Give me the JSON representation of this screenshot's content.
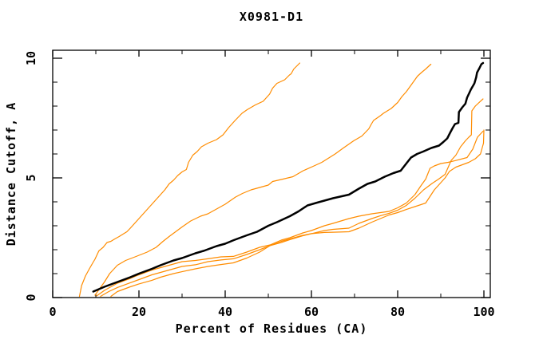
{
  "chart_data": {
    "type": "line",
    "title": "X0981-D1",
    "xlabel": "Percent of Residues (CA)",
    "ylabel": "Distance Cutoff, A",
    "xlim": [
      0,
      100
    ],
    "ylim": [
      0,
      10
    ],
    "grid": false,
    "legend": "none",
    "x_major_ticks": [
      0,
      20,
      40,
      60,
      80,
      100
    ],
    "x_minor_ticks": [
      10,
      30,
      50,
      70,
      90
    ],
    "y_major_ticks": [
      0,
      5,
      10
    ],
    "y_minor_ticks": [
      1,
      2,
      3,
      4,
      6,
      7,
      8,
      9
    ],
    "colors": {
      "frame": "#000000",
      "highlight_curve": "#000000",
      "other_curves": "#ff8c00",
      "background": "#ffffff"
    },
    "series": [
      {
        "name": "orange-curve-1-steepest",
        "color": "#ff8c00",
        "width": 1.2,
        "points": [
          [
            6.2,
            0.05
          ],
          [
            6.7,
            0.5
          ],
          [
            7.6,
            0.9
          ],
          [
            8.5,
            1.2
          ],
          [
            9.3,
            1.45
          ],
          [
            9.8,
            1.6
          ],
          [
            10.7,
            1.95
          ],
          [
            11.7,
            2.1
          ],
          [
            12.6,
            2.3
          ],
          [
            13.5,
            2.35
          ],
          [
            14.4,
            2.45
          ],
          [
            15.4,
            2.55
          ],
          [
            16.3,
            2.65
          ],
          [
            17.2,
            2.75
          ],
          [
            18,
            2.9
          ],
          [
            19,
            3.1
          ],
          [
            20,
            3.3
          ],
          [
            21,
            3.5
          ],
          [
            22,
            3.7
          ],
          [
            23,
            3.9
          ],
          [
            24,
            4.1
          ],
          [
            25,
            4.3
          ],
          [
            26,
            4.5
          ],
          [
            27,
            4.75
          ],
          [
            28,
            4.9
          ],
          [
            29,
            5.1
          ],
          [
            30,
            5.25
          ],
          [
            31,
            5.35
          ],
          [
            31.5,
            5.65
          ],
          [
            32.5,
            5.95
          ],
          [
            33.5,
            6.1
          ],
          [
            34.5,
            6.3
          ],
          [
            36,
            6.45
          ],
          [
            38,
            6.6
          ],
          [
            39.5,
            6.8
          ],
          [
            40.8,
            7.1
          ],
          [
            42.3,
            7.4
          ],
          [
            43.9,
            7.7
          ],
          [
            45.1,
            7.85
          ],
          [
            47,
            8.05
          ],
          [
            48.8,
            8.2
          ],
          [
            50.3,
            8.5
          ],
          [
            51,
            8.75
          ],
          [
            52,
            8.95
          ],
          [
            53.8,
            9.1
          ],
          [
            54.9,
            9.3
          ],
          [
            55.3,
            9.35
          ],
          [
            55.9,
            9.55
          ],
          [
            57.3,
            9.8
          ]
        ]
      },
      {
        "name": "orange-curve-2",
        "color": "#ff8c00",
        "width": 1.2,
        "points": [
          [
            9.8,
            0.1
          ],
          [
            10.4,
            0.25
          ],
          [
            12,
            0.65
          ],
          [
            13.2,
            1.0
          ],
          [
            15,
            1.35
          ],
          [
            16.9,
            1.55
          ],
          [
            19.1,
            1.7
          ],
          [
            21.9,
            1.9
          ],
          [
            24,
            2.1
          ],
          [
            25.6,
            2.35
          ],
          [
            27,
            2.55
          ],
          [
            28.5,
            2.75
          ],
          [
            30,
            2.95
          ],
          [
            32,
            3.2
          ],
          [
            34.3,
            3.4
          ],
          [
            36,
            3.5
          ],
          [
            38,
            3.7
          ],
          [
            40,
            3.9
          ],
          [
            42.4,
            4.2
          ],
          [
            44,
            4.35
          ],
          [
            46,
            4.5
          ],
          [
            48,
            4.6
          ],
          [
            50,
            4.7
          ],
          [
            51,
            4.85
          ],
          [
            53.4,
            4.95
          ],
          [
            55.7,
            5.05
          ],
          [
            58.1,
            5.3
          ],
          [
            60.6,
            5.5
          ],
          [
            62.4,
            5.65
          ],
          [
            65.5,
            6.0
          ],
          [
            67.4,
            6.25
          ],
          [
            69.8,
            6.55
          ],
          [
            71.7,
            6.75
          ],
          [
            73.3,
            7.05
          ],
          [
            73.9,
            7.25
          ],
          [
            74.4,
            7.4
          ],
          [
            76,
            7.6
          ],
          [
            76.7,
            7.7
          ],
          [
            78.5,
            7.9
          ],
          [
            80,
            8.15
          ],
          [
            81,
            8.4
          ],
          [
            82,
            8.6
          ],
          [
            83,
            8.85
          ],
          [
            84.6,
            9.25
          ],
          [
            85.5,
            9.4
          ],
          [
            86.5,
            9.55
          ],
          [
            87.7,
            9.75
          ]
        ]
      },
      {
        "name": "orange-curve-3-bundle-upper",
        "color": "#ff8c00",
        "width": 1.2,
        "points": [
          [
            10.2,
            0.07
          ],
          [
            12,
            0.3
          ],
          [
            15,
            0.6
          ],
          [
            18,
            0.8
          ],
          [
            20,
            0.95
          ],
          [
            23,
            1.15
          ],
          [
            25,
            1.25
          ],
          [
            28,
            1.4
          ],
          [
            30,
            1.5
          ],
          [
            33.1,
            1.55
          ],
          [
            36,
            1.62
          ],
          [
            39,
            1.7
          ],
          [
            41.9,
            1.72
          ],
          [
            45,
            1.9
          ],
          [
            48,
            2.1
          ],
          [
            50.4,
            2.2
          ],
          [
            53,
            2.4
          ],
          [
            55,
            2.5
          ],
          [
            58,
            2.7
          ],
          [
            60,
            2.8
          ],
          [
            63,
            3.0
          ],
          [
            65,
            3.1
          ],
          [
            68.7,
            3.3
          ],
          [
            71,
            3.4
          ],
          [
            74,
            3.5
          ],
          [
            78,
            3.6
          ],
          [
            80,
            3.75
          ],
          [
            82,
            3.95
          ],
          [
            84,
            4.3
          ],
          [
            85.5,
            4.7
          ],
          [
            86.5,
            4.95
          ],
          [
            87.5,
            5.4
          ],
          [
            88.5,
            5.5
          ],
          [
            90,
            5.6
          ],
          [
            91.7,
            5.65
          ],
          [
            93.3,
            5.72
          ],
          [
            96.1,
            5.85
          ],
          [
            97.4,
            6.2
          ],
          [
            98.5,
            6.7
          ],
          [
            99.8,
            6.95
          ]
        ]
      },
      {
        "name": "orange-curve-4-bundle-middle",
        "color": "#ff8c00",
        "width": 1.2,
        "points": [
          [
            11.1,
            0.05
          ],
          [
            13,
            0.25
          ],
          [
            15,
            0.42
          ],
          [
            18,
            0.62
          ],
          [
            20,
            0.75
          ],
          [
            23,
            0.95
          ],
          [
            25,
            1.05
          ],
          [
            28,
            1.2
          ],
          [
            30,
            1.3
          ],
          [
            33.1,
            1.37
          ],
          [
            36,
            1.5
          ],
          [
            39,
            1.57
          ],
          [
            41.9,
            1.62
          ],
          [
            45,
            1.8
          ],
          [
            48,
            2.0
          ],
          [
            50.4,
            2.17
          ],
          [
            53,
            2.3
          ],
          [
            55,
            2.42
          ],
          [
            58,
            2.58
          ],
          [
            60,
            2.67
          ],
          [
            63,
            2.8
          ],
          [
            65,
            2.85
          ],
          [
            68.7,
            2.9
          ],
          [
            71,
            3.1
          ],
          [
            74,
            3.3
          ],
          [
            76,
            3.42
          ],
          [
            78,
            3.52
          ],
          [
            80,
            3.65
          ],
          [
            82,
            3.85
          ],
          [
            84,
            4.15
          ],
          [
            86,
            4.5
          ],
          [
            88,
            4.77
          ],
          [
            89.5,
            4.95
          ],
          [
            91,
            5.15
          ],
          [
            92.4,
            5.73
          ],
          [
            93.5,
            5.95
          ],
          [
            94.6,
            6.3
          ],
          [
            95.7,
            6.55
          ],
          [
            96.5,
            6.7
          ],
          [
            97.1,
            6.8
          ],
          [
            97.2,
            7.8
          ],
          [
            98,
            8.0
          ],
          [
            99,
            8.17
          ],
          [
            99.8,
            8.3
          ]
        ]
      },
      {
        "name": "orange-curve-5-bundle-lower",
        "color": "#ff8c00",
        "width": 1.2,
        "points": [
          [
            13.5,
            0.05
          ],
          [
            15,
            0.25
          ],
          [
            18,
            0.45
          ],
          [
            20,
            0.57
          ],
          [
            23,
            0.72
          ],
          [
            25,
            0.85
          ],
          [
            28,
            1.0
          ],
          [
            30,
            1.08
          ],
          [
            33.1,
            1.2
          ],
          [
            36,
            1.3
          ],
          [
            39,
            1.38
          ],
          [
            41.9,
            1.45
          ],
          [
            45,
            1.65
          ],
          [
            48,
            1.9
          ],
          [
            50.4,
            2.17
          ],
          [
            53,
            2.35
          ],
          [
            55,
            2.45
          ],
          [
            58,
            2.6
          ],
          [
            60,
            2.67
          ],
          [
            63,
            2.72
          ],
          [
            65,
            2.73
          ],
          [
            68.7,
            2.75
          ],
          [
            71,
            2.9
          ],
          [
            74,
            3.15
          ],
          [
            76,
            3.3
          ],
          [
            78,
            3.45
          ],
          [
            80,
            3.55
          ],
          [
            82,
            3.68
          ],
          [
            84,
            3.8
          ],
          [
            86.5,
            3.95
          ],
          [
            88.5,
            4.5
          ],
          [
            90,
            4.8
          ],
          [
            91,
            5.0
          ],
          [
            92,
            5.27
          ],
          [
            93.5,
            5.45
          ],
          [
            95,
            5.55
          ],
          [
            96.5,
            5.65
          ],
          [
            98,
            5.8
          ],
          [
            99.2,
            6.0
          ],
          [
            99.9,
            6.45
          ],
          [
            100,
            7.0
          ]
        ]
      },
      {
        "name": "black-curve-highlighted",
        "color": "#000000",
        "width": 2.5,
        "points": [
          [
            9.4,
            0.25
          ],
          [
            12,
            0.45
          ],
          [
            15,
            0.65
          ],
          [
            18,
            0.85
          ],
          [
            20,
            1.0
          ],
          [
            23,
            1.2
          ],
          [
            25,
            1.35
          ],
          [
            28,
            1.55
          ],
          [
            30,
            1.65
          ],
          [
            33.1,
            1.85
          ],
          [
            35,
            1.95
          ],
          [
            38,
            2.15
          ],
          [
            40,
            2.25
          ],
          [
            42,
            2.4
          ],
          [
            45,
            2.6
          ],
          [
            47.4,
            2.75
          ],
          [
            50,
            3.0
          ],
          [
            52,
            3.15
          ],
          [
            55,
            3.4
          ],
          [
            57,
            3.6
          ],
          [
            59.1,
            3.85
          ],
          [
            61,
            3.95
          ],
          [
            63,
            4.05
          ],
          [
            65,
            4.15
          ],
          [
            68.7,
            4.3
          ],
          [
            71,
            4.55
          ],
          [
            73,
            4.75
          ],
          [
            74.8,
            4.85
          ],
          [
            77,
            5.05
          ],
          [
            79,
            5.2
          ],
          [
            80.7,
            5.3
          ],
          [
            82,
            5.6
          ],
          [
            83.1,
            5.85
          ],
          [
            84.5,
            6.0
          ],
          [
            85.9,
            6.1
          ],
          [
            87.8,
            6.25
          ],
          [
            89.6,
            6.35
          ],
          [
            90.6,
            6.5
          ],
          [
            91.5,
            6.65
          ],
          [
            92.2,
            6.9
          ],
          [
            92.8,
            7.1
          ],
          [
            93.3,
            7.25
          ],
          [
            94.1,
            7.3
          ],
          [
            94.2,
            7.75
          ],
          [
            95,
            7.95
          ],
          [
            95.7,
            8.1
          ],
          [
            96.1,
            8.35
          ],
          [
            97,
            8.7
          ],
          [
            97.8,
            8.95
          ],
          [
            98.2,
            9.2
          ],
          [
            98.4,
            9.4
          ],
          [
            99,
            9.6
          ],
          [
            99.4,
            9.75
          ],
          [
            99.8,
            9.8
          ]
        ]
      }
    ]
  }
}
